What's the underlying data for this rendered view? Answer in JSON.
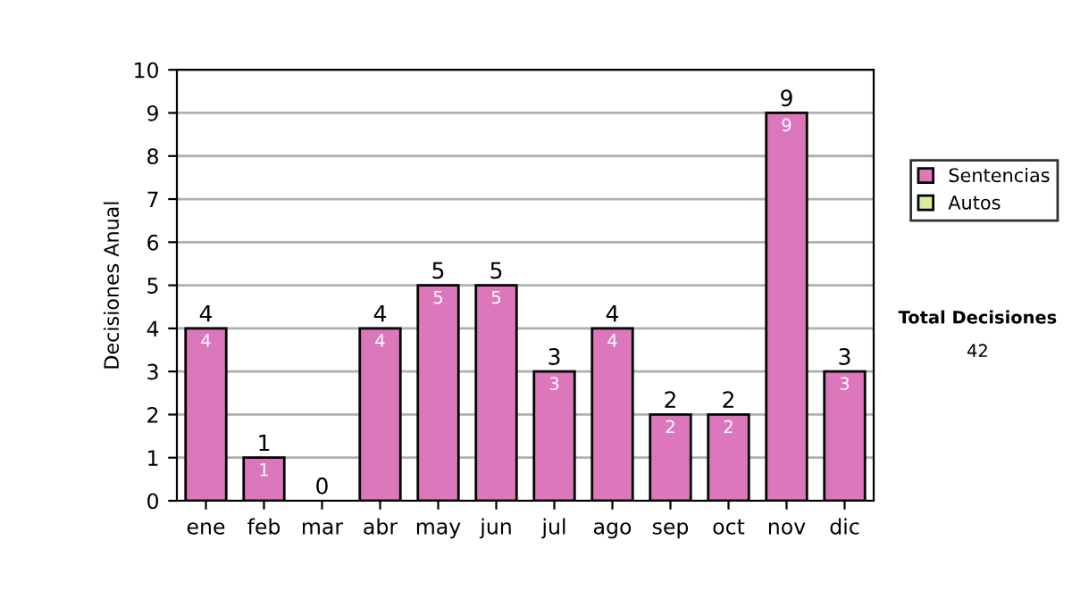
{
  "chart_data": {
    "type": "bar",
    "stacked": true,
    "ylabel": "Decisiones Anual",
    "categories": [
      "ene",
      "feb",
      "mar",
      "abr",
      "may",
      "jun",
      "jul",
      "ago",
      "sep",
      "oct",
      "nov",
      "dic"
    ],
    "series": [
      {
        "name": "Sentencias",
        "color": "#dd77bb",
        "values": [
          4,
          1,
          0,
          4,
          5,
          5,
          3,
          4,
          2,
          2,
          9,
          3
        ],
        "value_labels": [
          "4",
          "1",
          null,
          "4",
          "5",
          "5",
          "3",
          "4",
          "2",
          "2",
          "9",
          "3"
        ]
      },
      {
        "name": "Autos",
        "color": "#d8eca0",
        "values": [
          0,
          0,
          0,
          0,
          0,
          0,
          0,
          0,
          0,
          0,
          0,
          0
        ]
      }
    ],
    "totals": [
      "4",
      "1",
      "0",
      "4",
      "5",
      "5",
      "3",
      "4",
      "2",
      "2",
      "9",
      "3"
    ],
    "ylim": [
      0,
      10
    ],
    "yticks": [
      0,
      1,
      2,
      3,
      4,
      5,
      6,
      7,
      8,
      9,
      10
    ],
    "grid": "y",
    "legend": "right",
    "annotations": [
      "Total Decisiones",
      "42"
    ]
  }
}
